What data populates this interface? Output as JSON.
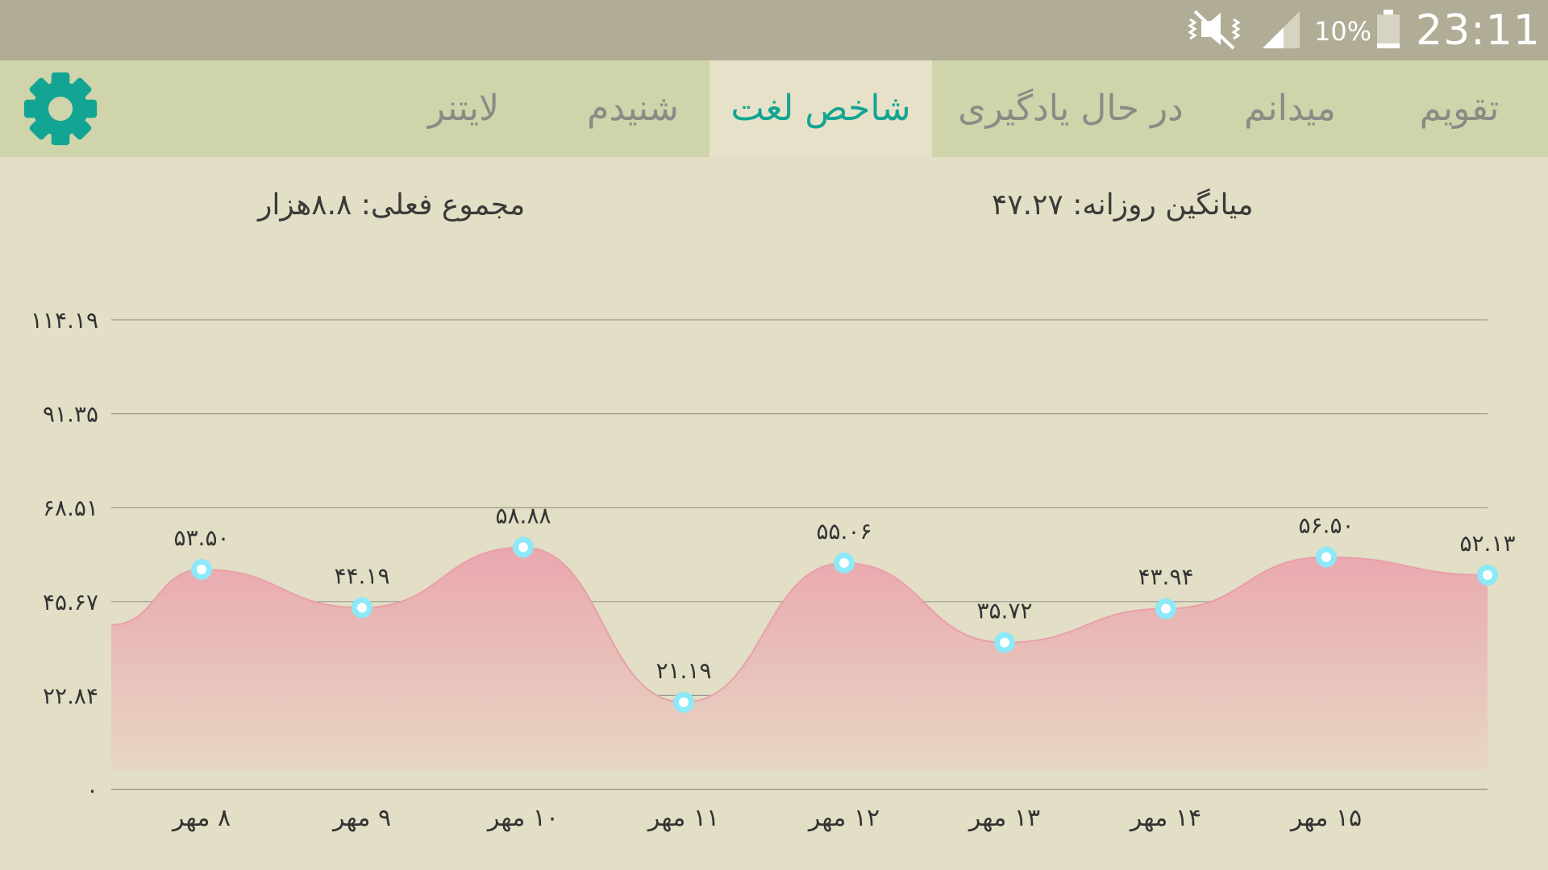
{
  "status_bar": {
    "battery_percent": "10%",
    "time": "23:11",
    "icons": [
      "mute-icon",
      "signal-icon",
      "battery-icon"
    ]
  },
  "tabs": [
    {
      "label": "تقویم",
      "active": false
    },
    {
      "label": "میدانم",
      "active": false
    },
    {
      "label": "در حال یادگیری",
      "active": false
    },
    {
      "label": "شاخص لغت",
      "active": true
    },
    {
      "label": "شنیدم",
      "active": false
    },
    {
      "label": "لایتنر",
      "active": false
    }
  ],
  "settings_icon": "gear-icon",
  "stats": {
    "daily_average": "میانگین روزانه: ۴۷.۲۷",
    "total": "مجموع فعلی: ۸.۸هزار"
  },
  "colors": {
    "accent": "#12a593",
    "area_fill": "#eaa7ae",
    "marker": "#8de8f7",
    "tab_bar": "#cfd4ab",
    "status_bar": "#b1ac95"
  },
  "chart_data": {
    "type": "area",
    "categories": [
      "۸ مهر",
      "۹ مهر",
      "۱۰ مهر",
      "۱۱ مهر",
      "۱۲ مهر",
      "۱۳ مهر",
      "۱۴ مهر",
      "۱۵ مهر",
      ""
    ],
    "values": [
      53.5,
      44.19,
      58.88,
      21.19,
      55.06,
      35.72,
      43.94,
      56.5,
      52.13
    ],
    "value_labels": [
      "۵۳.۵۰",
      "۴۴.۱۹",
      "۵۸.۸۸",
      "۲۱.۱۹",
      "۵۵.۰۶",
      "۳۵.۷۲",
      "۴۳.۹۴",
      "۵۶.۵۰",
      "۵۲.۱۳"
    ],
    "y_ticks": [
      0,
      22.84,
      45.67,
      68.51,
      91.35,
      114.19
    ],
    "y_tick_labels": [
      "۰",
      "۲۲.۸۴",
      "۴۵.۶۷",
      "۶۸.۵۱",
      "۹۱.۳۵",
      "۱۱۴.۱۹"
    ],
    "ylim": [
      0,
      114.19
    ],
    "start_value": 40,
    "grid": true,
    "legend": "none"
  }
}
